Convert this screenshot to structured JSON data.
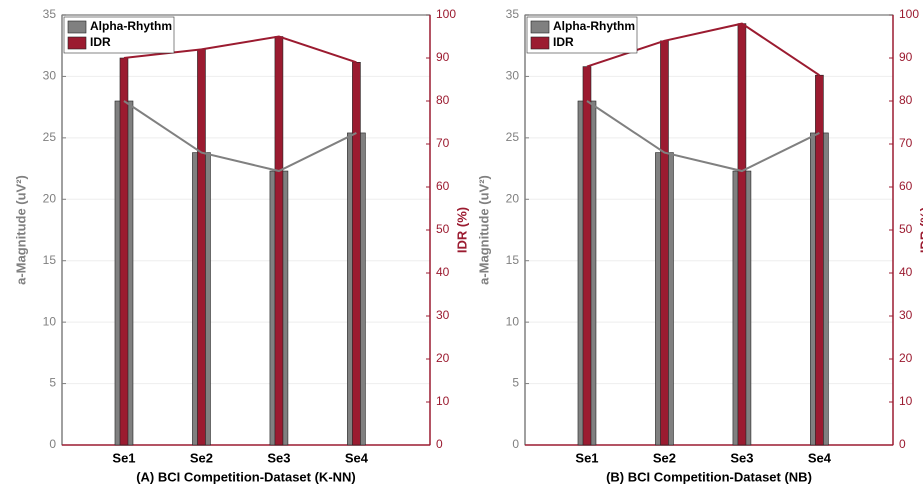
{
  "chart_data": [
    {
      "type": "bar",
      "xlabel": "(A) BCI Competition-Dataset (K-NN)",
      "ylabel": "a-Magnitude (uV²)",
      "y2label": "IDR (%)",
      "categories": [
        "Se1",
        "Se2",
        "Se3",
        "Se4"
      ],
      "series": [
        {
          "name": "Alpha-Rhythm",
          "color": "#808080",
          "values": [
            28,
            23.8,
            22.3,
            25.4
          ]
        },
        {
          "name": "IDR",
          "color": "#9b1b30",
          "values": [
            90,
            92,
            95,
            89
          ],
          "axis": "y2"
        }
      ],
      "ylim": [
        0,
        35
      ],
      "yticks": [
        0,
        5,
        10,
        15,
        20,
        25,
        30,
        35
      ],
      "y2lim": [
        0,
        100
      ],
      "y2ticks": [
        0,
        10,
        20,
        30,
        40,
        50,
        60,
        70,
        80,
        90,
        100
      ],
      "grid": true,
      "legend": "upper left"
    },
    {
      "type": "bar",
      "xlabel": "(B) BCI Competition-Dataset (NB)",
      "ylabel": "a-Magnitude (uV²)",
      "y2label": "IDR (%)",
      "categories": [
        "Se1",
        "Se2",
        "Se3",
        "Se4"
      ],
      "series": [
        {
          "name": "Alpha-Rhythm",
          "color": "#808080",
          "values": [
            28,
            23.8,
            22.3,
            25.4
          ]
        },
        {
          "name": "IDR",
          "color": "#9b1b30",
          "values": [
            88,
            94,
            98,
            86
          ],
          "axis": "y2"
        }
      ],
      "ylim": [
        0,
        35
      ],
      "yticks": [
        0,
        5,
        10,
        15,
        20,
        25,
        30,
        35
      ],
      "y2lim": [
        0,
        100
      ],
      "y2ticks": [
        0,
        10,
        20,
        30,
        40,
        50,
        60,
        70,
        80,
        90,
        100
      ],
      "grid": true,
      "legend": "upper left"
    }
  ]
}
